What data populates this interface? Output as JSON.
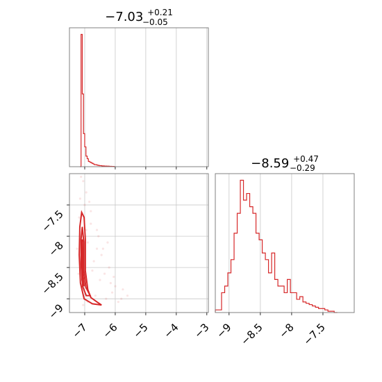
{
  "chart_data": [
    {
      "panel": "hist-param1",
      "type": "histogram",
      "title": {
        "value": "−7.03",
        "plus": "+0.21",
        "minus": "−0.05"
      },
      "xlim": [
        -7.5,
        -2.95
      ],
      "ylim": [
        0,
        1.05
      ],
      "x_ticks": [
        -7,
        -6,
        -5,
        -4,
        -3
      ],
      "bins": [
        [
          -7.16,
          0.0
        ],
        [
          -7.12,
          1.0
        ],
        [
          -7.08,
          0.55
        ],
        [
          -7.04,
          0.25
        ],
        [
          -7.0,
          0.15
        ],
        [
          -6.96,
          0.08
        ],
        [
          -6.92,
          0.06
        ],
        [
          -6.88,
          0.04
        ],
        [
          -6.84,
          0.035
        ],
        [
          -6.8,
          0.03
        ],
        [
          -6.76,
          0.025
        ],
        [
          -6.72,
          0.02
        ],
        [
          -6.68,
          0.015
        ],
        [
          -6.64,
          0.015
        ],
        [
          -6.6,
          0.012
        ],
        [
          -6.56,
          0.01
        ],
        [
          -6.52,
          0.008
        ],
        [
          -6.48,
          0.008
        ],
        [
          -6.44,
          0.006
        ],
        [
          -6.4,
          0.006
        ],
        [
          -6.36,
          0.005
        ],
        [
          -6.32,
          0.005
        ],
        [
          -6.28,
          0.004
        ],
        [
          -6.24,
          0.004
        ],
        [
          -6.2,
          0.003
        ],
        [
          -6.16,
          0.003
        ],
        [
          -6.12,
          0.002
        ],
        [
          -6.08,
          0.002
        ],
        [
          -6.04,
          0.0
        ]
      ]
    },
    {
      "panel": "scatter-2d",
      "type": "scatter",
      "xlim": [
        -7.5,
        -2.95
      ],
      "ylim": [
        -9.22,
        -7.0
      ],
      "x_ticks": [
        -7,
        -6,
        -5,
        -4,
        -3
      ],
      "y_ticks": [
        -7.5,
        -8.0,
        -8.5,
        -9.0
      ],
      "contours": [
        [
          [
            -7.1,
            -7.62
          ],
          [
            -7.02,
            -7.7
          ],
          [
            -6.98,
            -8.05
          ],
          [
            -6.98,
            -8.55
          ],
          [
            -6.9,
            -8.85
          ],
          [
            -6.8,
            -8.98
          ],
          [
            -6.6,
            -9.05
          ],
          [
            -6.45,
            -9.1
          ],
          [
            -6.75,
            -9.08
          ],
          [
            -7.02,
            -9.0
          ],
          [
            -7.14,
            -8.75
          ],
          [
            -7.18,
            -8.3
          ],
          [
            -7.16,
            -7.85
          ],
          [
            -7.1,
            -7.62
          ]
        ],
        [
          [
            -7.08,
            -7.85
          ],
          [
            -7.03,
            -8.1
          ],
          [
            -7.03,
            -8.55
          ],
          [
            -6.96,
            -8.82
          ],
          [
            -6.82,
            -8.95
          ],
          [
            -6.95,
            -8.95
          ],
          [
            -7.07,
            -8.8
          ],
          [
            -7.12,
            -8.45
          ],
          [
            -7.12,
            -8.05
          ],
          [
            -7.08,
            -7.85
          ]
        ],
        [
          [
            -7.08,
            -8.05
          ],
          [
            -7.06,
            -8.3
          ],
          [
            -7.06,
            -8.6
          ],
          [
            -7.02,
            -8.8
          ],
          [
            -7.09,
            -8.7
          ],
          [
            -7.1,
            -8.4
          ],
          [
            -7.08,
            -8.05
          ]
        ]
      ],
      "points": [
        [
          -7.12,
          -7.05
        ],
        [
          -7.05,
          -7.12
        ],
        [
          -6.95,
          -7.3
        ],
        [
          -7.15,
          -7.4
        ],
        [
          -6.8,
          -7.6
        ],
        [
          -6.6,
          -7.9
        ],
        [
          -6.4,
          -8.2
        ],
        [
          -6.2,
          -8.5
        ],
        [
          -6.0,
          -8.8
        ],
        [
          -5.8,
          -9.0
        ],
        [
          -5.6,
          -8.95
        ],
        [
          -6.5,
          -8.7
        ],
        [
          -6.7,
          -8.4
        ],
        [
          -6.9,
          -8.1
        ],
        [
          -7.2,
          -8.6
        ],
        [
          -7.25,
          -8.2
        ],
        [
          -6.3,
          -9.0
        ],
        [
          -6.1,
          -8.9
        ],
        [
          -5.9,
          -9.05
        ],
        [
          -6.8,
          -7.8
        ],
        [
          -7.0,
          -7.5
        ],
        [
          -6.55,
          -8.0
        ],
        [
          -6.35,
          -8.6
        ],
        [
          -6.15,
          -8.75
        ],
        [
          -6.65,
          -8.95
        ],
        [
          -6.9,
          -9.05
        ],
        [
          -7.05,
          -9.1
        ],
        [
          -6.75,
          -8.55
        ],
        [
          -6.45,
          -8.3
        ],
        [
          -6.95,
          -7.9
        ],
        [
          -7.18,
          -7.7
        ],
        [
          -6.85,
          -7.45
        ],
        [
          -6.25,
          -8.1
        ],
        [
          -6.05,
          -8.65
        ],
        [
          -5.75,
          -8.85
        ],
        [
          -6.6,
          -8.2
        ]
      ]
    },
    {
      "panel": "hist-param2",
      "type": "histogram",
      "title": {
        "value": "−8.59",
        "plus": "+0.47",
        "minus": "−0.29"
      },
      "xlim": [
        -9.22,
        -7.0
      ],
      "ylim": [
        0,
        1.05
      ],
      "x_ticks": [
        -9.0,
        -8.5,
        -8.0,
        -7.5
      ],
      "bins": [
        [
          -9.22,
          0.02
        ],
        [
          -9.17,
          0.02
        ],
        [
          -9.12,
          0.15
        ],
        [
          -9.07,
          0.2
        ],
        [
          -9.02,
          0.3
        ],
        [
          -8.97,
          0.4
        ],
        [
          -8.92,
          0.6
        ],
        [
          -8.87,
          0.75
        ],
        [
          -8.82,
          1.0
        ],
        [
          -8.77,
          0.85
        ],
        [
          -8.72,
          0.9
        ],
        [
          -8.67,
          0.8
        ],
        [
          -8.62,
          0.75
        ],
        [
          -8.57,
          0.6
        ],
        [
          -8.52,
          0.55
        ],
        [
          -8.47,
          0.45
        ],
        [
          -8.42,
          0.4
        ],
        [
          -8.37,
          0.3
        ],
        [
          -8.32,
          0.45
        ],
        [
          -8.27,
          0.25
        ],
        [
          -8.22,
          0.2
        ],
        [
          -8.17,
          0.2
        ],
        [
          -8.12,
          0.15
        ],
        [
          -8.07,
          0.25
        ],
        [
          -8.02,
          0.15
        ],
        [
          -7.97,
          0.15
        ],
        [
          -7.92,
          0.1
        ],
        [
          -7.87,
          0.12
        ],
        [
          -7.82,
          0.08
        ],
        [
          -7.77,
          0.07
        ],
        [
          -7.72,
          0.06
        ],
        [
          -7.67,
          0.05
        ],
        [
          -7.62,
          0.04
        ],
        [
          -7.57,
          0.03
        ],
        [
          -7.52,
          0.03
        ],
        [
          -7.47,
          0.02
        ],
        [
          -7.42,
          0.01
        ],
        [
          -7.37,
          0.01
        ],
        [
          -7.32,
          0.0
        ]
      ]
    }
  ]
}
